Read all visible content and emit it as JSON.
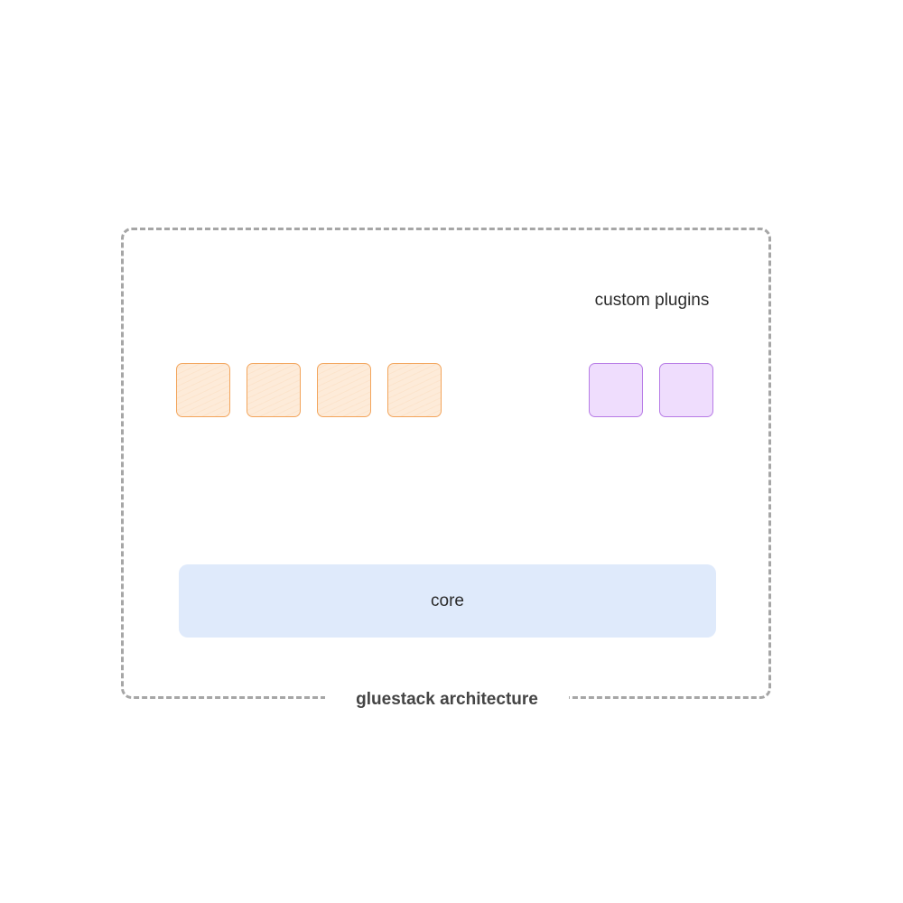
{
  "diagram": {
    "caption": "gluestack architecture",
    "custom_plugins_label": "custom plugins",
    "core_label": "core",
    "plugin_tile_count": 4,
    "custom_plugin_tile_count": 2,
    "colors": {
      "frame_border": "#a6a6a6",
      "plugin_fill": "#fdebd9",
      "plugin_border": "#f3a55c",
      "custom_fill": "#efddfd",
      "custom_border": "#b77be6",
      "core_fill": "#dfeafb"
    }
  }
}
